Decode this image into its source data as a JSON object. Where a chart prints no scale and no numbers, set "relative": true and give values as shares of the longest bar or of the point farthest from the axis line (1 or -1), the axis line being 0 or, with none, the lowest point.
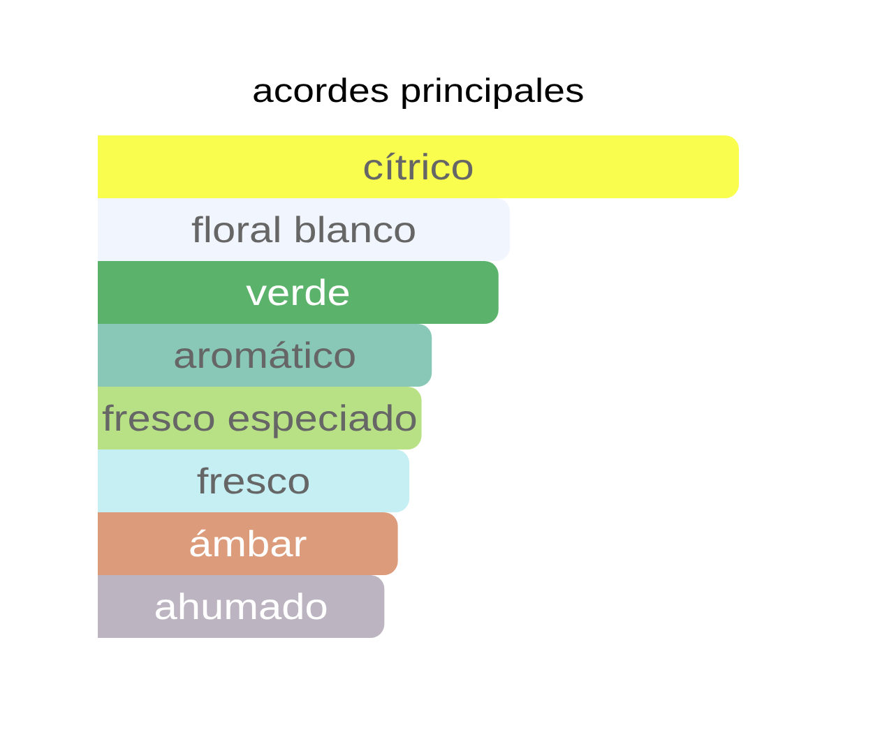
{
  "chart_data": {
    "type": "bar",
    "orientation": "horizontal",
    "relative": true,
    "title": "acordes principales",
    "categories": [
      "cítrico",
      "floral blanco",
      "verde",
      "aromático",
      "fresco especiado",
      "fresco",
      "ámbar",
      "ahumado"
    ],
    "values": [
      1,
      0.643,
      0.625,
      0.521,
      0.505,
      0.486,
      0.468,
      0.447
    ],
    "colors": [
      "#f9fd4e",
      "#f1f5fd",
      "#5bb26a",
      "#89c8b6",
      "#b8e085",
      "#c5eff3",
      "#dc9c7b",
      "#bcb4c0"
    ]
  }
}
